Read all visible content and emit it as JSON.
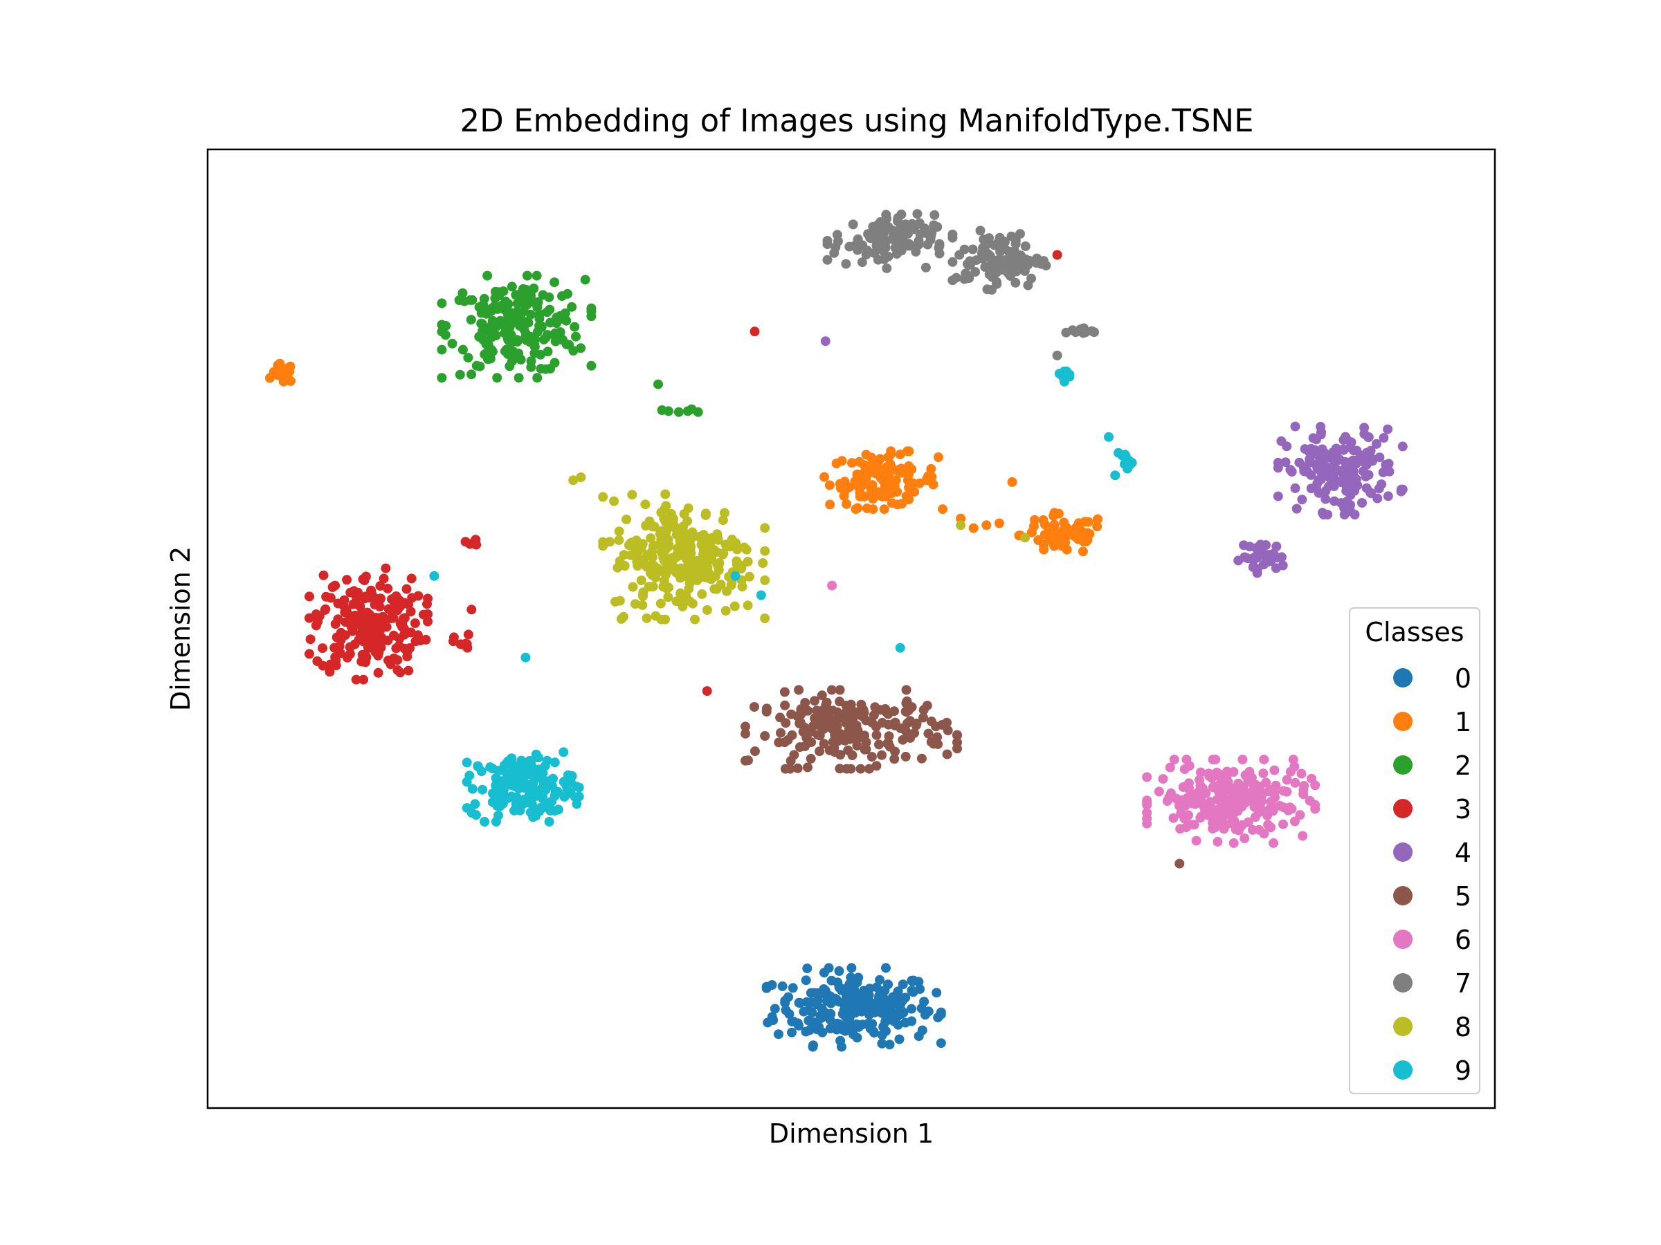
{
  "chart_data": {
    "type": "scatter",
    "title": "2D Embedding of Images using ManifoldType.TSNE",
    "xlabel": "Dimension 1",
    "ylabel": "Dimension 2",
    "xlim": [
      0,
      100
    ],
    "ylim": [
      0,
      100
    ],
    "grid": false,
    "ticks": false,
    "legend": {
      "title": "Classes",
      "placement": "lower-right"
    },
    "series": [
      {
        "name": "0",
        "color": "#1f77b4",
        "clusters": [
          {
            "cx": 50.2,
            "cy": 10.5,
            "sx": 5.6,
            "sy": 3.4,
            "n": 230
          }
        ],
        "points": []
      },
      {
        "name": "1",
        "color": "#ff7f0e",
        "clusters": [
          {
            "cx": 52.5,
            "cy": 65.5,
            "sx": 3.8,
            "sy": 2.5,
            "n": 110
          },
          {
            "cx": 66.5,
            "cy": 59.8,
            "sx": 3.0,
            "sy": 1.9,
            "n": 70
          },
          {
            "cx": 5.8,
            "cy": 76.6,
            "sx": 0.8,
            "sy": 0.9,
            "n": 14
          }
        ],
        "points": [
          [
            58.5,
            61.5
          ],
          [
            59.5,
            60.5
          ],
          [
            60.5,
            60.8
          ],
          [
            62.5,
            65.3
          ],
          [
            61.5,
            61.0
          ]
        ]
      },
      {
        "name": "2",
        "color": "#2ca02c",
        "clusters": [
          {
            "cx": 24.0,
            "cy": 81.5,
            "sx": 4.8,
            "sy": 4.4,
            "n": 210
          }
        ],
        "points": [
          [
            35.0,
            75.5
          ],
          [
            35.8,
            72.7
          ],
          [
            36.6,
            72.6
          ],
          [
            37.3,
            72.7
          ],
          [
            38.1,
            72.6
          ],
          [
            35.3,
            72.8
          ],
          [
            37.6,
            72.9
          ]
        ]
      },
      {
        "name": "3",
        "color": "#d62728",
        "clusters": [
          {
            "cx": 12.5,
            "cy": 50.5,
            "sx": 3.8,
            "sy": 4.8,
            "n": 200
          },
          {
            "cx": 19.8,
            "cy": 48.5,
            "sx": 0.6,
            "sy": 0.8,
            "n": 9
          },
          {
            "cx": 20.5,
            "cy": 59.0,
            "sx": 1.2,
            "sy": 0.5,
            "n": 9
          }
        ],
        "points": [
          [
            42.5,
            81.0
          ],
          [
            66.0,
            89.0
          ],
          [
            20.5,
            52.0
          ],
          [
            38.8,
            43.5
          ]
        ]
      },
      {
        "name": "4",
        "color": "#9467bd",
        "clusters": [
          {
            "cx": 88.0,
            "cy": 66.5,
            "sx": 4.0,
            "sy": 3.8,
            "n": 165
          },
          {
            "cx": 82.0,
            "cy": 57.5,
            "sx": 1.6,
            "sy": 1.4,
            "n": 35
          }
        ],
        "points": [
          [
            48.0,
            80.0
          ]
        ]
      },
      {
        "name": "5",
        "color": "#8c564b",
        "clusters": [
          {
            "cx": 50.0,
            "cy": 39.5,
            "sx": 6.8,
            "sy": 3.4,
            "n": 200
          }
        ],
        "points": [
          [
            75.5,
            25.5
          ]
        ]
      },
      {
        "name": "6",
        "color": "#e377c2",
        "clusters": [
          {
            "cx": 79.5,
            "cy": 32.0,
            "sx": 5.4,
            "sy": 3.6,
            "n": 220
          }
        ],
        "points": [
          [
            48.5,
            54.5
          ]
        ]
      },
      {
        "name": "7",
        "color": "#7f7f7f",
        "clusters": [
          {
            "cx": 52.5,
            "cy": 90.5,
            "sx": 3.6,
            "sy": 2.4,
            "n": 100
          },
          {
            "cx": 61.5,
            "cy": 88.5,
            "sx": 3.0,
            "sy": 2.6,
            "n": 100
          },
          {
            "cx": 67.8,
            "cy": 81.0,
            "sx": 1.1,
            "sy": 0.3,
            "n": 12
          }
        ],
        "points": [
          [
            66.0,
            78.5
          ]
        ]
      },
      {
        "name": "8",
        "color": "#bcbd22",
        "clusters": [
          {
            "cx": 37.0,
            "cy": 57.5,
            "sx": 5.2,
            "sy": 5.4,
            "n": 250
          }
        ],
        "points": [
          [
            28.4,
            65.5
          ],
          [
            29.0,
            65.8
          ],
          [
            58.5,
            60.8
          ],
          [
            63.5,
            59.5
          ]
        ]
      },
      {
        "name": "9",
        "color": "#17becf",
        "clusters": [
          {
            "cx": 24.5,
            "cy": 33.5,
            "sx": 3.6,
            "sy": 3.0,
            "n": 160
          },
          {
            "cx": 66.5,
            "cy": 76.5,
            "sx": 0.4,
            "sy": 0.6,
            "n": 12
          },
          {
            "cx": 71.3,
            "cy": 67.5,
            "sx": 0.5,
            "sy": 0.7,
            "n": 14
          }
        ],
        "points": [
          [
            17.6,
            55.5
          ],
          [
            24.7,
            47.0
          ],
          [
            53.8,
            48.0
          ],
          [
            41.0,
            55.5
          ],
          [
            43.0,
            53.5
          ],
          [
            70.5,
            66.0
          ],
          [
            70.0,
            70.0
          ]
        ]
      }
    ]
  }
}
